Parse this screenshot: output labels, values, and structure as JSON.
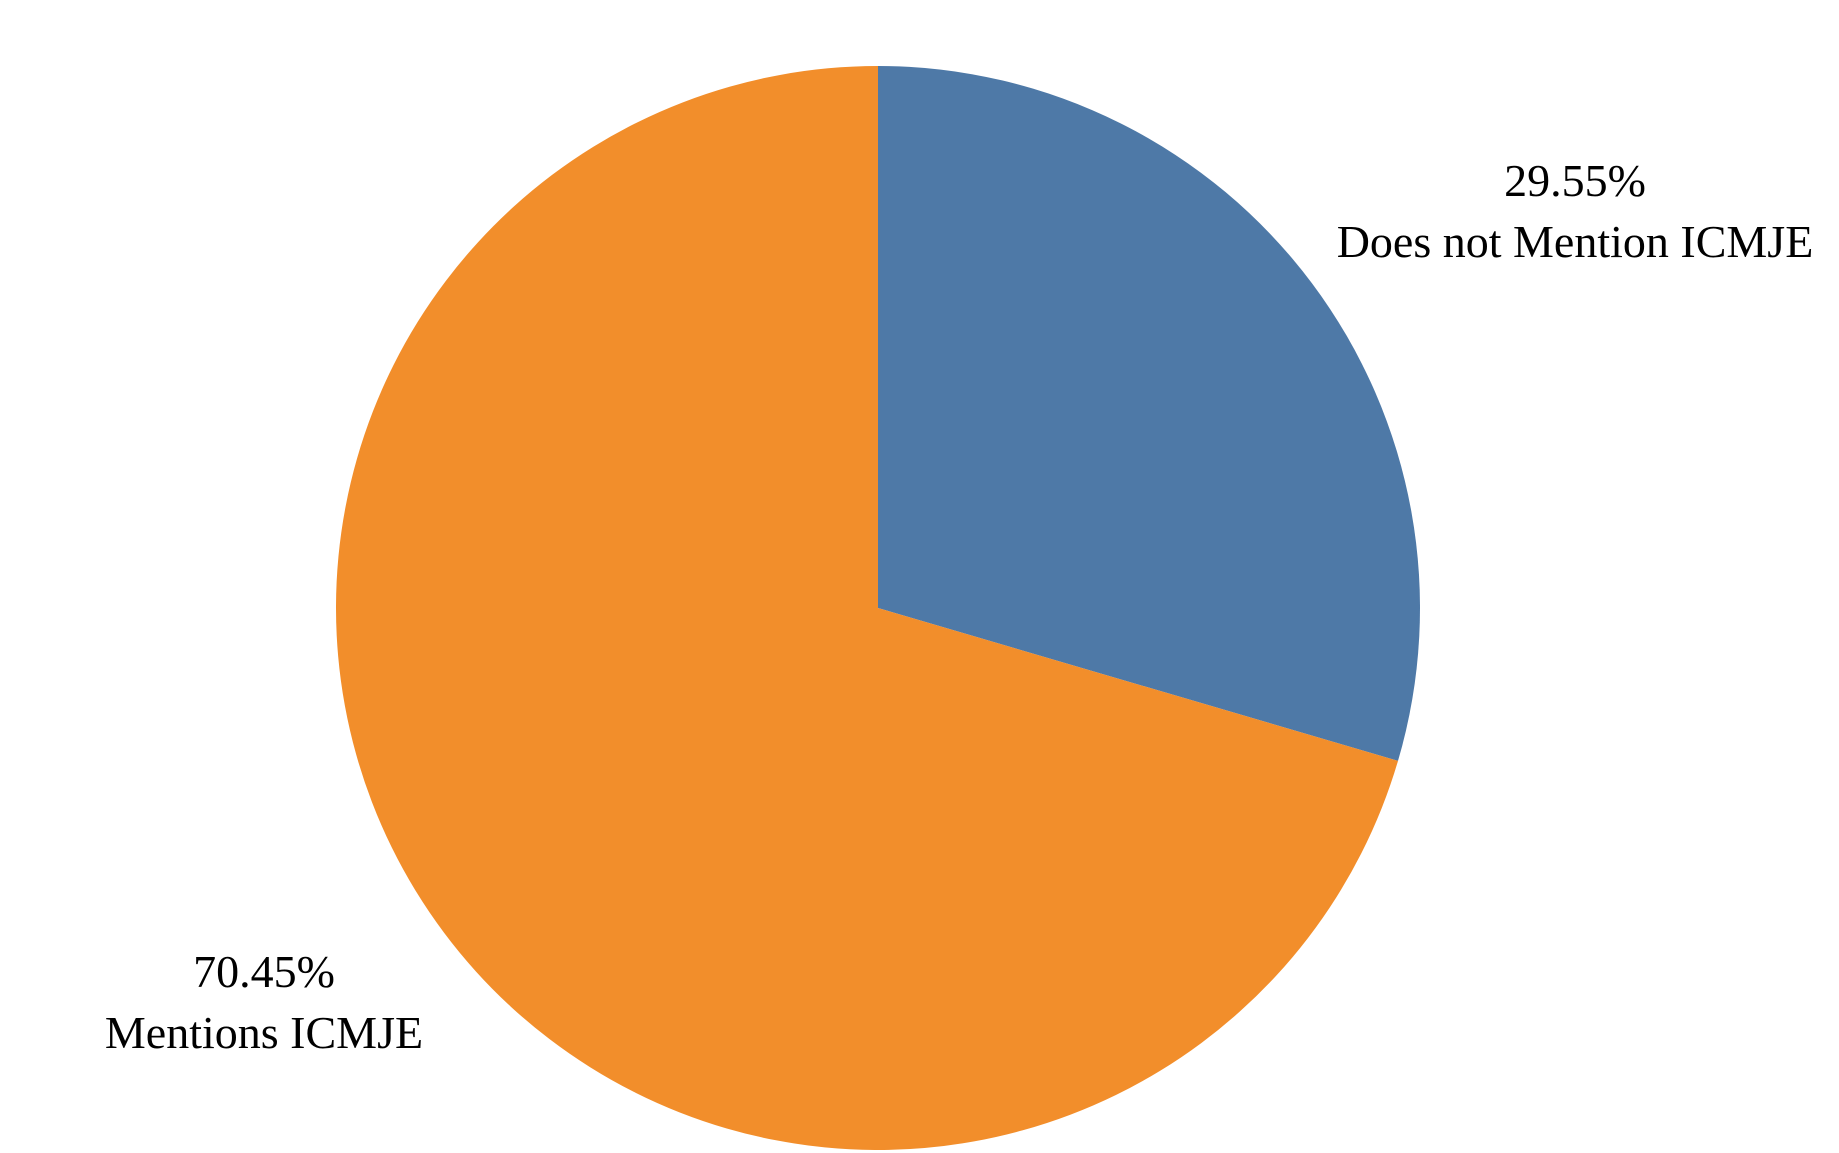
{
  "chart_data": {
    "type": "pie",
    "slices": [
      {
        "label": "Does not Mention ICMJE",
        "value": 29.55,
        "value_label": "29.55%",
        "color": "#4e79a7"
      },
      {
        "label": "Mentions ICMJE",
        "value": 70.45,
        "value_label": "70.45%",
        "color": "#f28e2b"
      }
    ],
    "start": "top",
    "direction": "clockwise",
    "legend": "none"
  }
}
